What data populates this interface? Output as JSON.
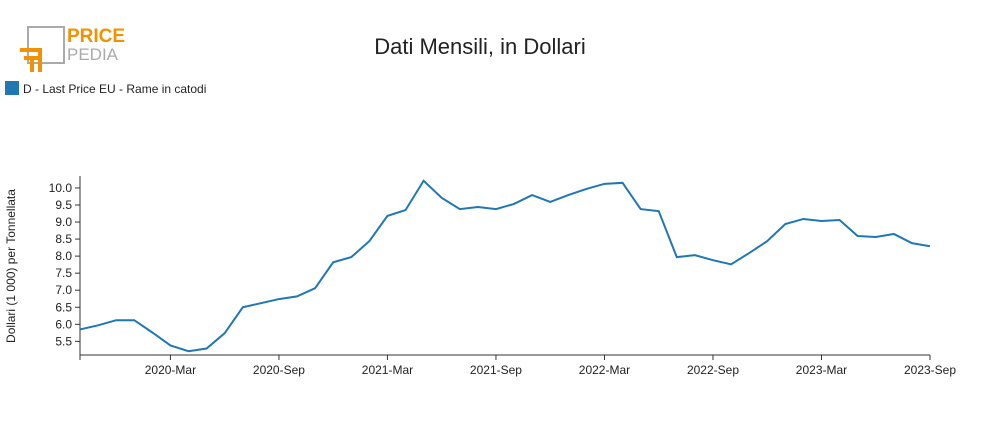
{
  "logo": {
    "line1": "PRICE",
    "line2": "PEDIA"
  },
  "chart_data": {
    "type": "line",
    "title": "Dati Mensili, in Dollari",
    "y_label": "Dollari (1 000) per Tonnellata",
    "categories": [
      null,
      null,
      null,
      null,
      null,
      "2020-Mar",
      null,
      null,
      null,
      null,
      null,
      "2020-Sep",
      null,
      null,
      null,
      null,
      null,
      "2021-Mar",
      null,
      null,
      null,
      null,
      null,
      "2021-Sep",
      null,
      null,
      null,
      null,
      null,
      "2022-Mar",
      null,
      null,
      null,
      null,
      null,
      "2022-Sep",
      null,
      null,
      null,
      null,
      null,
      "2023-Mar",
      null,
      null,
      null,
      null,
      null,
      "2023-Sep"
    ],
    "series": [
      {
        "name": "D - Last Price EU - Rame in catodi",
        "color": "#1f77b4",
        "values": [
          5.85,
          5.97,
          6.12,
          6.12,
          5.76,
          5.38,
          5.21,
          5.29,
          5.74,
          6.5,
          6.62,
          6.74,
          6.82,
          7.06,
          7.82,
          7.97,
          8.44,
          9.18,
          9.35,
          10.21,
          9.71,
          9.38,
          9.44,
          9.38,
          9.53,
          9.79,
          9.59,
          9.79,
          9.97,
          10.12,
          10.15,
          9.38,
          9.32,
          7.97,
          8.03,
          7.88,
          7.76,
          8.09,
          8.44,
          8.94,
          9.09,
          9.03,
          9.06,
          8.59,
          8.56,
          8.65,
          8.38,
          8.29
        ]
      }
    ],
    "ylim": [
      5.1,
      10.35
    ],
    "yticks": [
      {
        "value": 5.5,
        "label": "5.5"
      },
      {
        "value": 6,
        "label": "6.0"
      },
      {
        "value": 6.5,
        "label": "6.5"
      },
      {
        "value": 7,
        "label": "7.0"
      },
      {
        "value": 7.5,
        "label": "7.5"
      },
      {
        "value": 8,
        "label": "8.0"
      },
      {
        "value": 8.5,
        "label": "8.5"
      },
      {
        "value": 9,
        "label": "9.0"
      },
      {
        "value": 9.5,
        "label": "9.5"
      },
      {
        "value": 10,
        "label": "10.0"
      }
    ],
    "legend": "top-left",
    "grid": false
  }
}
